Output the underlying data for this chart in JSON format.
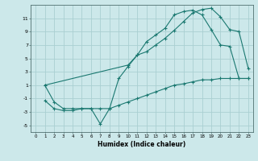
{
  "bg_color": "#cce8ea",
  "grid_color": "#aacfd2",
  "line_color": "#1a7870",
  "xlabel": "Humidex (Indice chaleur)",
  "xlim": [
    -0.5,
    23.5
  ],
  "ylim": [
    -6,
    13
  ],
  "yticks": [
    -5,
    -3,
    -1,
    1,
    3,
    5,
    7,
    9,
    11
  ],
  "xticks": [
    0,
    1,
    2,
    3,
    4,
    5,
    6,
    7,
    8,
    9,
    10,
    11,
    12,
    13,
    14,
    15,
    16,
    17,
    18,
    19,
    20,
    21,
    22,
    23
  ],
  "curve1_x": [
    1,
    10,
    11,
    12,
    13,
    14,
    15,
    16,
    17,
    18,
    19,
    20,
    21,
    22,
    23
  ],
  "curve1_y": [
    1,
    4,
    5.5,
    7.5,
    8.5,
    9.5,
    11.5,
    12,
    12.2,
    11.5,
    9.3,
    7,
    6.8,
    2,
    2
  ],
  "curve2_x": [
    1,
    2,
    3,
    4,
    5,
    6,
    7,
    8,
    9,
    10,
    11,
    12,
    13,
    14,
    15,
    16,
    17,
    18,
    19,
    20,
    21,
    22,
    23
  ],
  "curve2_y": [
    1,
    -1.5,
    -2.5,
    -2.5,
    -2.5,
    -2.5,
    -4.8,
    -2.5,
    2,
    3.8,
    5.5,
    6,
    7,
    8,
    9.2,
    10.5,
    11.8,
    12.3,
    12.5,
    11.2,
    9.3,
    9,
    3.5
  ],
  "curve3_x": [
    1,
    2,
    3,
    4,
    5,
    6,
    7,
    8,
    9,
    10,
    11,
    12,
    13,
    14,
    15,
    16,
    17,
    18,
    19,
    20,
    21,
    22,
    23
  ],
  "curve3_y": [
    -1.3,
    -2.5,
    -2.8,
    -2.8,
    -2.5,
    -2.5,
    -2.5,
    -2.5,
    -2,
    -1.5,
    -1,
    -0.5,
    0,
    0.5,
    1,
    1.2,
    1.5,
    1.8,
    1.8,
    2,
    2,
    2,
    2
  ]
}
